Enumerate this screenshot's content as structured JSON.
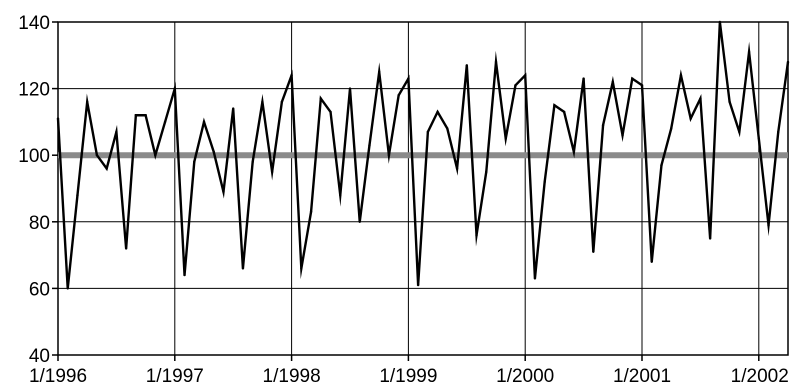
{
  "chart_data": {
    "type": "line",
    "x_ticks": [
      "1/1996",
      "1/1997",
      "1/1998",
      "1/1999",
      "1/2000",
      "1/2001",
      "1/2002"
    ],
    "y_ticks": [
      "40",
      "60",
      "80",
      "100",
      "120",
      "140"
    ],
    "ylim": [
      40,
      140
    ],
    "x_start": "1996-01",
    "x_end": "2002-04",
    "grid": true,
    "reference_line": {
      "value": 100,
      "color": "#8a8a8a"
    },
    "line_color": "#000000",
    "series": [
      {
        "values": [
          111,
          60,
          88,
          116,
          100,
          96,
          107,
          72,
          112,
          112,
          100,
          110,
          120,
          64,
          98,
          110,
          101,
          89,
          114,
          66,
          98,
          116,
          95,
          116,
          124,
          66,
          83,
          117,
          113,
          88,
          120,
          80,
          103,
          125,
          100,
          118,
          123,
          61,
          107,
          113,
          108,
          96,
          127,
          76,
          95,
          128,
          105,
          121,
          124,
          63,
          92,
          115,
          113,
          101,
          123,
          71,
          109,
          122,
          106,
          123,
          121,
          68,
          97,
          108,
          124,
          111,
          117,
          75,
          140,
          116,
          107,
          131,
          105,
          79,
          107,
          128
        ]
      }
    ]
  }
}
